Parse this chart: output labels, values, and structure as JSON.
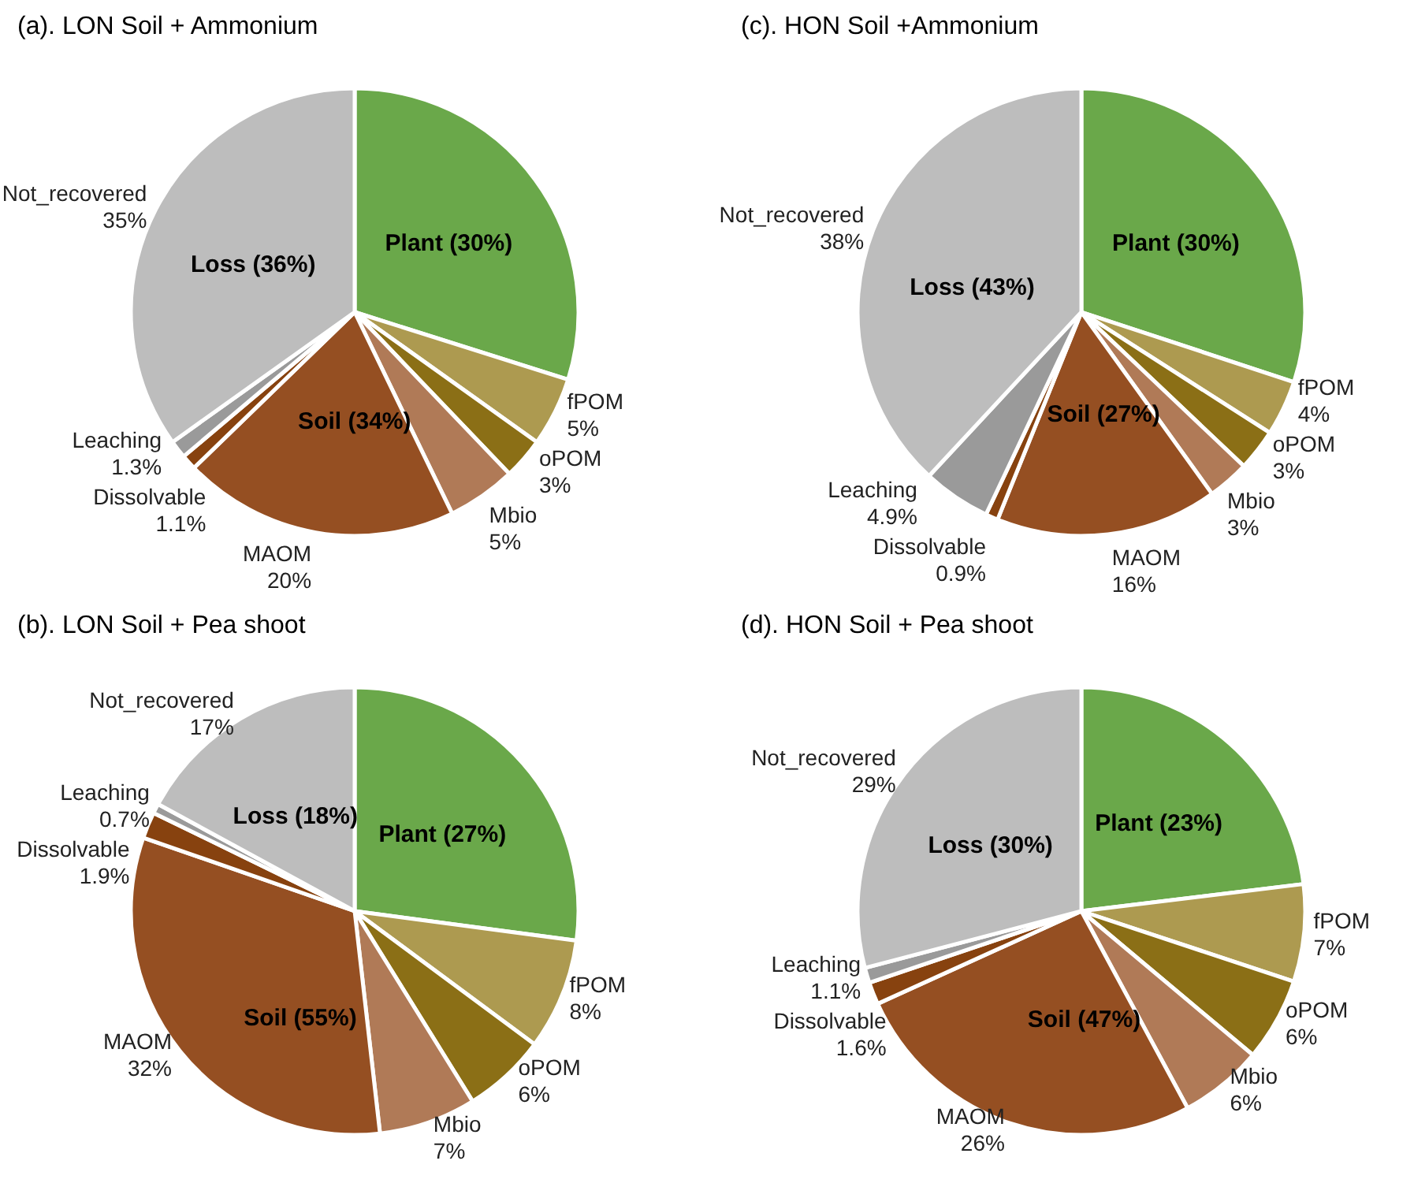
{
  "chart_data": [
    {
      "type": "pie",
      "title": "(a). LON Soil + Ammonium",
      "categories": [
        null,
        "fPOM",
        "oPOM",
        "Mbio",
        "MAOM",
        "Dissolvable",
        "Leaching",
        "Not_recovered"
      ],
      "values": [
        30,
        5,
        3,
        5,
        20,
        1.1,
        1.3,
        35
      ],
      "value_labels": [
        "Plant (30%)",
        "5%",
        "3%",
        "5%",
        "20%",
        "1.1%",
        "1.3%",
        "35%"
      ],
      "colors": [
        "#6aa84a",
        "#ad9a50",
        "#8b6f16",
        "#b07a57",
        "#954f22",
        "#87420f",
        "#9a9a9a",
        "#bdbdbd"
      ],
      "annotations": [
        "Loss (36%)",
        "Soil (34%)"
      ],
      "legend": false
    },
    {
      "type": "pie",
      "title": "(c). HON Soil +Ammonium",
      "categories": [
        null,
        "fPOM",
        "oPOM",
        "Mbio",
        "MAOM",
        "Dissolvable",
        "Leaching",
        "Not_recovered"
      ],
      "values": [
        30,
        4,
        3,
        3,
        16,
        0.9,
        4.9,
        38
      ],
      "value_labels": [
        "Plant (30%)",
        "4%",
        "3%",
        "3%",
        "16%",
        "0.9%",
        "4.9%",
        "38%"
      ],
      "colors": [
        "#6aa84a",
        "#ad9a50",
        "#8b6f16",
        "#b07a57",
        "#954f22",
        "#87420f",
        "#9a9a9a",
        "#bdbdbd"
      ],
      "annotations": [
        "Loss (43%)",
        "Soil (27%)"
      ],
      "legend": false
    },
    {
      "type": "pie",
      "title": "(b). LON Soil + Pea shoot",
      "categories": [
        null,
        "fPOM",
        "oPOM",
        "Mbio",
        "MAOM",
        "Dissolvable",
        "Leaching",
        "Not_recovered"
      ],
      "values": [
        27,
        8,
        6,
        7,
        32,
        1.9,
        0.7,
        17
      ],
      "value_labels": [
        "Plant (27%)",
        "8%",
        "6%",
        "7%",
        "32%",
        "1.9%",
        "0.7%",
        "17%"
      ],
      "colors": [
        "#6aa84a",
        "#ad9a50",
        "#8b6f16",
        "#b07a57",
        "#954f22",
        "#87420f",
        "#9a9a9a",
        "#bdbdbd"
      ],
      "annotations": [
        "Loss (18%)",
        "Soil (55%)"
      ],
      "legend": false
    },
    {
      "type": "pie",
      "title": "(d). HON Soil + Pea shoot",
      "categories": [
        null,
        "fPOM",
        "oPOM",
        "Mbio",
        "MAOM",
        "Dissolvable",
        "Leaching",
        "Not_recovered"
      ],
      "values": [
        23,
        7,
        6,
        6,
        26,
        1.6,
        1.1,
        29
      ],
      "value_labels": [
        "Plant (23%)",
        "7%",
        "6%",
        "6%",
        "26%",
        "1.6%",
        "1.1%",
        "29%"
      ],
      "colors": [
        "#6aa84a",
        "#ad9a50",
        "#8b6f16",
        "#b07a57",
        "#954f22",
        "#87420f",
        "#9a9a9a",
        "#bdbdbd"
      ],
      "annotations": [
        "Loss (30%)",
        "Soil (47%)"
      ],
      "legend": false
    }
  ]
}
